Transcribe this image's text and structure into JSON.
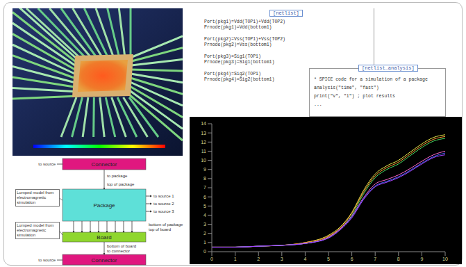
{
  "netlist": {
    "title": "[netlist]",
    "lines": [
      "Port(pkg1)=Vdd(TOP1)+Vdd(TOP2)",
      "Prnode(pkg1)=Vdd(bottom1)",
      "Port(pkg2)=Vss(TOP1)+Vss(TOP2)",
      "Prnode(pkg2)=Vss(bottom1)",
      "Port(pkg3)=Sig1(TOP1)",
      "Prnode(pkg3)=Sig1(bottom1)",
      "Port(pkg4)=Sig2(TOP1)",
      "Prnode(pkg4)=Sig2(bottom1)"
    ]
  },
  "analysis": {
    "title": "[netlist_analysis]",
    "lines": [
      "* SPICE code for a simulation of a package",
      "analysis(\"time\", \"fast\")",
      "print(\"v\", \"i\") ; plot results",
      "..."
    ]
  },
  "diagram": {
    "nodes": [
      {
        "label": "Connector",
        "color": "#e0177f"
      },
      {
        "label": "Package",
        "color": "#5ee0d8"
      },
      {
        "label": "Board",
        "color": "#8fd62e"
      },
      {
        "label": "Connector",
        "color": "#e0177f"
      }
    ],
    "links": [
      "to package",
      "top of package",
      "bottom of package",
      "top of board",
      "bottom of board",
      "to connector"
    ],
    "side_labels": [
      "to source 1",
      "to source 2",
      "to source 3"
    ],
    "connector_labels": [
      "to source",
      "to source"
    ],
    "notes": [
      "Lumped model from electromagnetic simulation",
      "Lumped model from electromagnetic simulation"
    ]
  },
  "chart_data": {
    "type": "line",
    "x": [
      0,
      1,
      2,
      3,
      4,
      5,
      5.5,
      6,
      6.5,
      7,
      7.5,
      8,
      8.5,
      9,
      9.5,
      10
    ],
    "xlim": [
      0,
      10
    ],
    "xticks": [
      0,
      1,
      2,
      3,
      4,
      5,
      6,
      7,
      8,
      9,
      10
    ],
    "ylim": [
      0,
      14
    ],
    "yticks": [
      0,
      1,
      2,
      3,
      4,
      5,
      6,
      7,
      8,
      9,
      10,
      11,
      12,
      13,
      14
    ],
    "series": [
      {
        "color": "#e8e84a",
        "values": [
          0.5,
          0.5,
          0.6,
          0.7,
          1.0,
          1.8,
          2.7,
          4.3,
          6.7,
          8.5,
          9.4,
          10.0,
          10.9,
          11.8,
          12.5,
          12.8
        ]
      },
      {
        "color": "#ff9933",
        "values": [
          0.5,
          0.5,
          0.6,
          0.7,
          1.0,
          1.7,
          2.6,
          4.2,
          6.5,
          8.3,
          9.2,
          9.8,
          10.7,
          11.6,
          12.3,
          12.6
        ]
      },
      {
        "color": "#44dd66",
        "values": [
          0.5,
          0.5,
          0.6,
          0.7,
          0.9,
          1.6,
          2.5,
          4.0,
          6.3,
          8.1,
          9.0,
          9.6,
          10.5,
          11.4,
          12.1,
          12.4
        ]
      },
      {
        "color": "#ff66cc",
        "values": [
          0.5,
          0.5,
          0.6,
          0.7,
          0.9,
          1.6,
          2.5,
          3.9,
          5.9,
          7.4,
          7.9,
          8.4,
          9.1,
          9.9,
          10.6,
          11.0
        ]
      },
      {
        "color": "#4466ff",
        "values": [
          0.5,
          0.5,
          0.6,
          0.7,
          0.9,
          1.5,
          2.4,
          3.8,
          5.8,
          7.2,
          7.7,
          8.2,
          8.9,
          9.7,
          10.4,
          10.8
        ]
      },
      {
        "color": "#aa44ff",
        "values": [
          0.5,
          0.5,
          0.6,
          0.7,
          0.9,
          1.5,
          2.4,
          3.7,
          5.7,
          7.1,
          7.6,
          8.1,
          8.8,
          9.6,
          10.3,
          10.6
        ]
      }
    ]
  }
}
